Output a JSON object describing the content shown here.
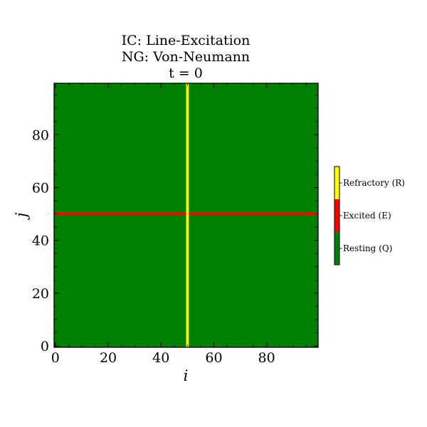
{
  "chart_data": {
    "type": "heatmap",
    "title_lines": [
      "IC: Line-Excitation",
      "NG: Von-Neumann",
      "t = 0"
    ],
    "xlabel": "i",
    "ylabel": "j",
    "xlim": [
      0,
      99
    ],
    "ylim": [
      0,
      99
    ],
    "x_ticks": [
      0,
      20,
      40,
      60,
      80
    ],
    "y_ticks": [
      0,
      20,
      40,
      60,
      80
    ],
    "grid": false,
    "background_state": "Resting (Q)",
    "features": [
      {
        "orientation": "horizontal",
        "j": 50,
        "state": "Excited (E)"
      },
      {
        "orientation": "vertical",
        "i": 50,
        "state": "Refractory (R)"
      }
    ],
    "colorbar": {
      "placement": "right",
      "states": [
        {
          "label": "Resting (Q)",
          "color": "#008000"
        },
        {
          "label": "Excited (E)",
          "color": "#ff0000"
        },
        {
          "label": "Refractory (R)",
          "color": "#ffff00"
        }
      ]
    }
  }
}
